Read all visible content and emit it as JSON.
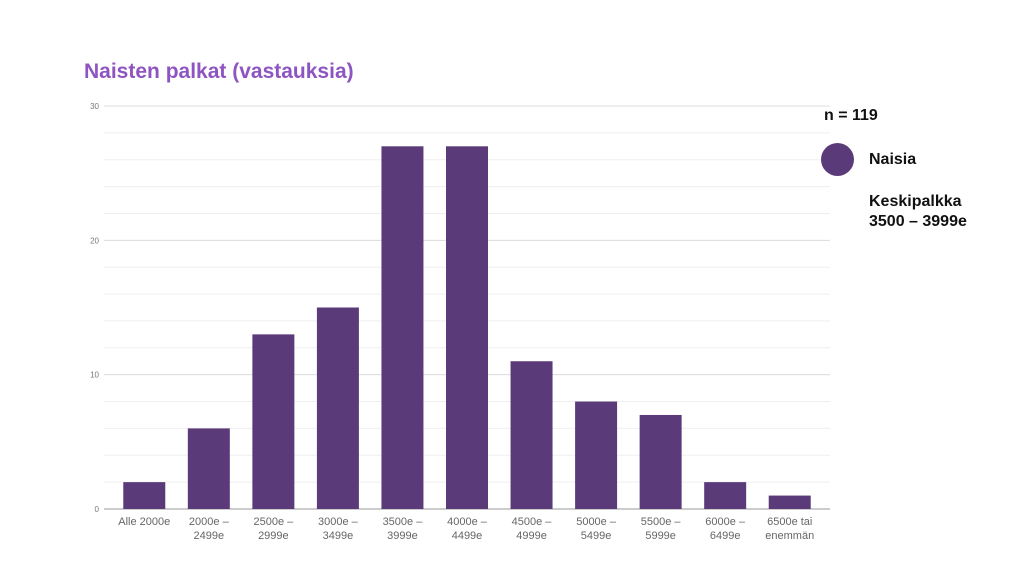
{
  "title": "Naisten palkat (vastauksia)",
  "n_label": "n = 119",
  "legend": {
    "label": "Naisia",
    "color": "#5b3a7a"
  },
  "average": {
    "label": "Keskipalkka",
    "value": "3500 – 3999e"
  },
  "colors": {
    "title": "#8e55c2",
    "bar": "#5b3a7a",
    "grid": "#e6e6e6"
  },
  "chart_data": {
    "type": "bar",
    "categories": [
      [
        "Alle 2000e"
      ],
      [
        "2000e –",
        "2499e"
      ],
      [
        "2500e –",
        "2999e"
      ],
      [
        "3000e –",
        "3499e"
      ],
      [
        "3500e –",
        "3999e"
      ],
      [
        "4000e –",
        "4499e"
      ],
      [
        "4500e –",
        "4999e"
      ],
      [
        "5000e –",
        "5499e"
      ],
      [
        "5500e –",
        "5999e"
      ],
      [
        "6000e –",
        "6499e"
      ],
      [
        "6500e tai",
        "enemmän"
      ]
    ],
    "series": [
      {
        "name": "Naisia",
        "values": [
          2,
          6,
          13,
          15,
          27,
          27,
          11,
          8,
          7,
          2,
          1
        ]
      }
    ],
    "yticks": [
      0,
      10,
      20,
      30
    ],
    "ylim": [
      0,
      30
    ],
    "minor_grid_step": 2,
    "grid": true,
    "legend_position": "right"
  }
}
